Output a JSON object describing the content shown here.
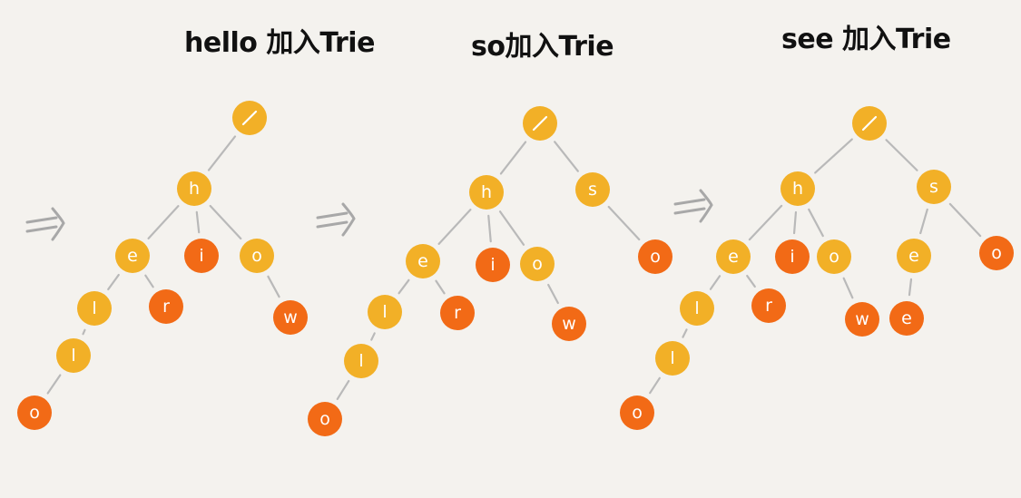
{
  "colors": {
    "background": "#f4f2ee",
    "inner_node": "#f2b027",
    "terminal_node": "#f26a16",
    "edge": "#b9b9b9",
    "arrow": "#a8a8a8",
    "label": "#ffffff",
    "title": "#111111"
  },
  "panels": [
    {
      "title": "hello 加入Trie",
      "nodes": [
        {
          "id": "root",
          "label": "/",
          "terminal": false
        },
        {
          "id": "h",
          "label": "h",
          "terminal": false
        },
        {
          "id": "e",
          "label": "e",
          "terminal": false
        },
        {
          "id": "i",
          "label": "i",
          "terminal": true
        },
        {
          "id": "o",
          "label": "o",
          "terminal": false
        },
        {
          "id": "l1",
          "label": "l",
          "terminal": false
        },
        {
          "id": "r",
          "label": "r",
          "terminal": true
        },
        {
          "id": "w",
          "label": "w",
          "terminal": true
        },
        {
          "id": "l2",
          "label": "l",
          "terminal": false
        },
        {
          "id": "o2",
          "label": "o",
          "terminal": true
        }
      ],
      "edges": [
        [
          "root",
          "h"
        ],
        [
          "h",
          "e"
        ],
        [
          "h",
          "i"
        ],
        [
          "h",
          "o"
        ],
        [
          "e",
          "l1"
        ],
        [
          "e",
          "r"
        ],
        [
          "o",
          "w"
        ],
        [
          "l1",
          "l2"
        ],
        [
          "l2",
          "o2"
        ]
      ]
    },
    {
      "title": "so加入Trie",
      "nodes": [
        {
          "id": "root",
          "label": "/",
          "terminal": false
        },
        {
          "id": "h",
          "label": "h",
          "terminal": false
        },
        {
          "id": "s",
          "label": "s",
          "terminal": false
        },
        {
          "id": "e",
          "label": "e",
          "terminal": false
        },
        {
          "id": "i",
          "label": "i",
          "terminal": true
        },
        {
          "id": "o",
          "label": "o",
          "terminal": false
        },
        {
          "id": "so",
          "label": "o",
          "terminal": true
        },
        {
          "id": "l1",
          "label": "l",
          "terminal": false
        },
        {
          "id": "r",
          "label": "r",
          "terminal": true
        },
        {
          "id": "w",
          "label": "w",
          "terminal": true
        },
        {
          "id": "l2",
          "label": "l",
          "terminal": false
        },
        {
          "id": "o2",
          "label": "o",
          "terminal": true
        }
      ],
      "edges": [
        [
          "root",
          "h"
        ],
        [
          "root",
          "s"
        ],
        [
          "h",
          "e"
        ],
        [
          "h",
          "i"
        ],
        [
          "h",
          "o"
        ],
        [
          "s",
          "so"
        ],
        [
          "e",
          "l1"
        ],
        [
          "e",
          "r"
        ],
        [
          "o",
          "w"
        ],
        [
          "l1",
          "l2"
        ],
        [
          "l2",
          "o2"
        ]
      ]
    },
    {
      "title": "see 加入Trie",
      "nodes": [
        {
          "id": "root",
          "label": "/",
          "terminal": false
        },
        {
          "id": "h",
          "label": "h",
          "terminal": false
        },
        {
          "id": "s",
          "label": "s",
          "terminal": false
        },
        {
          "id": "e",
          "label": "e",
          "terminal": false
        },
        {
          "id": "i",
          "label": "i",
          "terminal": true
        },
        {
          "id": "o",
          "label": "o",
          "terminal": false
        },
        {
          "id": "se",
          "label": "e",
          "terminal": false
        },
        {
          "id": "so",
          "label": "o",
          "terminal": true
        },
        {
          "id": "l1",
          "label": "l",
          "terminal": false
        },
        {
          "id": "r",
          "label": "r",
          "terminal": true
        },
        {
          "id": "w",
          "label": "w",
          "terminal": true
        },
        {
          "id": "see",
          "label": "e",
          "terminal": true
        },
        {
          "id": "l2",
          "label": "l",
          "terminal": false
        },
        {
          "id": "o2",
          "label": "o",
          "terminal": true
        }
      ],
      "edges": [
        [
          "root",
          "h"
        ],
        [
          "root",
          "s"
        ],
        [
          "h",
          "e"
        ],
        [
          "h",
          "i"
        ],
        [
          "h",
          "o"
        ],
        [
          "s",
          "se"
        ],
        [
          "s",
          "so"
        ],
        [
          "e",
          "l1"
        ],
        [
          "e",
          "r"
        ],
        [
          "o",
          "w"
        ],
        [
          "se",
          "see"
        ],
        [
          "l1",
          "l2"
        ],
        [
          "l2",
          "o2"
        ]
      ]
    }
  ]
}
